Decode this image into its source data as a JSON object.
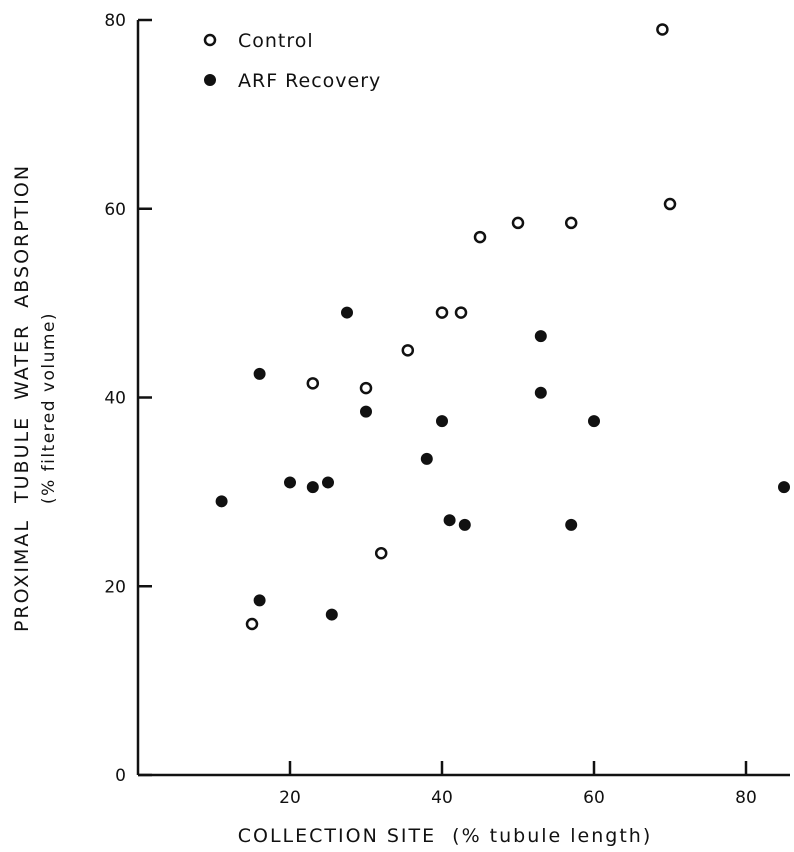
{
  "chart_data": {
    "type": "scatter",
    "xlabel": "COLLECTION SITE  (% tubule length)",
    "ylabel": "PROXIMAL  TUBULE  WATER  ABSORPTION",
    "ylabel2": "(% filtered volume)",
    "xlim": [
      0,
      85
    ],
    "ylim": [
      0,
      80
    ],
    "x_ticks": [
      20,
      40,
      60,
      80
    ],
    "y_ticks": [
      0,
      20,
      40,
      60,
      80
    ],
    "x_tick_labels": [
      "20",
      "40",
      "60",
      "80"
    ],
    "y_tick_labels": [
      "0",
      "20",
      "40",
      "60",
      "80"
    ],
    "grid": false,
    "legend_position": "top-left",
    "series": [
      {
        "name": "Control",
        "marker": "open-circle",
        "points": [
          [
            15,
            16
          ],
          [
            23,
            41.5
          ],
          [
            30,
            41
          ],
          [
            32,
            23.5
          ],
          [
            35.5,
            45
          ],
          [
            40,
            49
          ],
          [
            42.5,
            49
          ],
          [
            45,
            57
          ],
          [
            50,
            58.5
          ],
          [
            57,
            58.5
          ],
          [
            69,
            79
          ],
          [
            70,
            60.5
          ]
        ]
      },
      {
        "name": "ARF Recovery",
        "marker": "filled-circle",
        "points": [
          [
            11,
            29
          ],
          [
            16,
            42.5
          ],
          [
            16,
            18.5
          ],
          [
            20,
            31
          ],
          [
            23,
            30.5
          ],
          [
            25,
            31
          ],
          [
            25.5,
            17
          ],
          [
            27.5,
            49
          ],
          [
            30,
            38.5
          ],
          [
            38,
            33.5
          ],
          [
            40,
            37.5
          ],
          [
            41,
            27
          ],
          [
            43,
            26.5
          ],
          [
            53,
            46.5
          ],
          [
            53,
            40.5
          ],
          [
            57,
            26.5
          ],
          [
            60,
            37.5
          ],
          [
            85,
            30.5
          ]
        ]
      }
    ]
  }
}
